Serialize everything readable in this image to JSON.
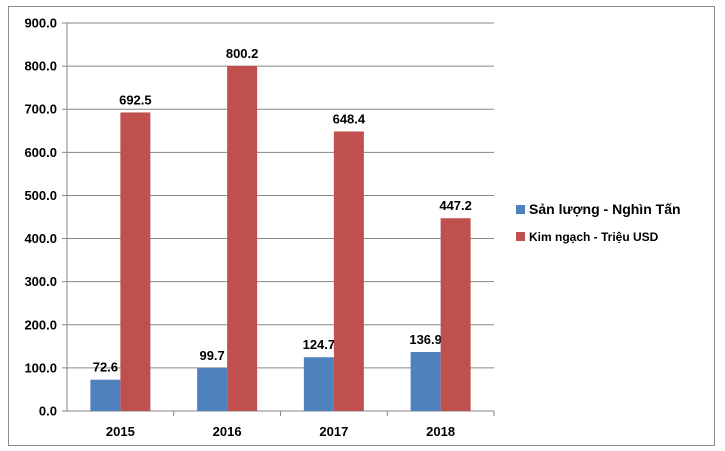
{
  "chart_data": {
    "type": "bar",
    "categories": [
      "2015",
      "2016",
      "2017",
      "2018"
    ],
    "series": [
      {
        "name": "Sản lượng - Nghìn Tấn",
        "color": "#4f81bd",
        "values": [
          72.6,
          99.7,
          124.7,
          136.9
        ],
        "labels": [
          "72.6",
          "99.7",
          "124.7",
          "136.9"
        ]
      },
      {
        "name": "Kim ngạch - Triệu USD",
        "color": "#c0504d",
        "values": [
          692.5,
          800.2,
          648.4,
          447.2
        ],
        "labels": [
          "692.5",
          "800.2",
          "648.4",
          "447.2"
        ]
      }
    ],
    "y_ticks": [
      "0.0",
      "100.0",
      "200.0",
      "300.0",
      "400.0",
      "500.0",
      "600.0",
      "700.0",
      "800.0",
      "900.0"
    ],
    "ylim": [
      0,
      900
    ],
    "grid": true,
    "legend_position": "right"
  }
}
